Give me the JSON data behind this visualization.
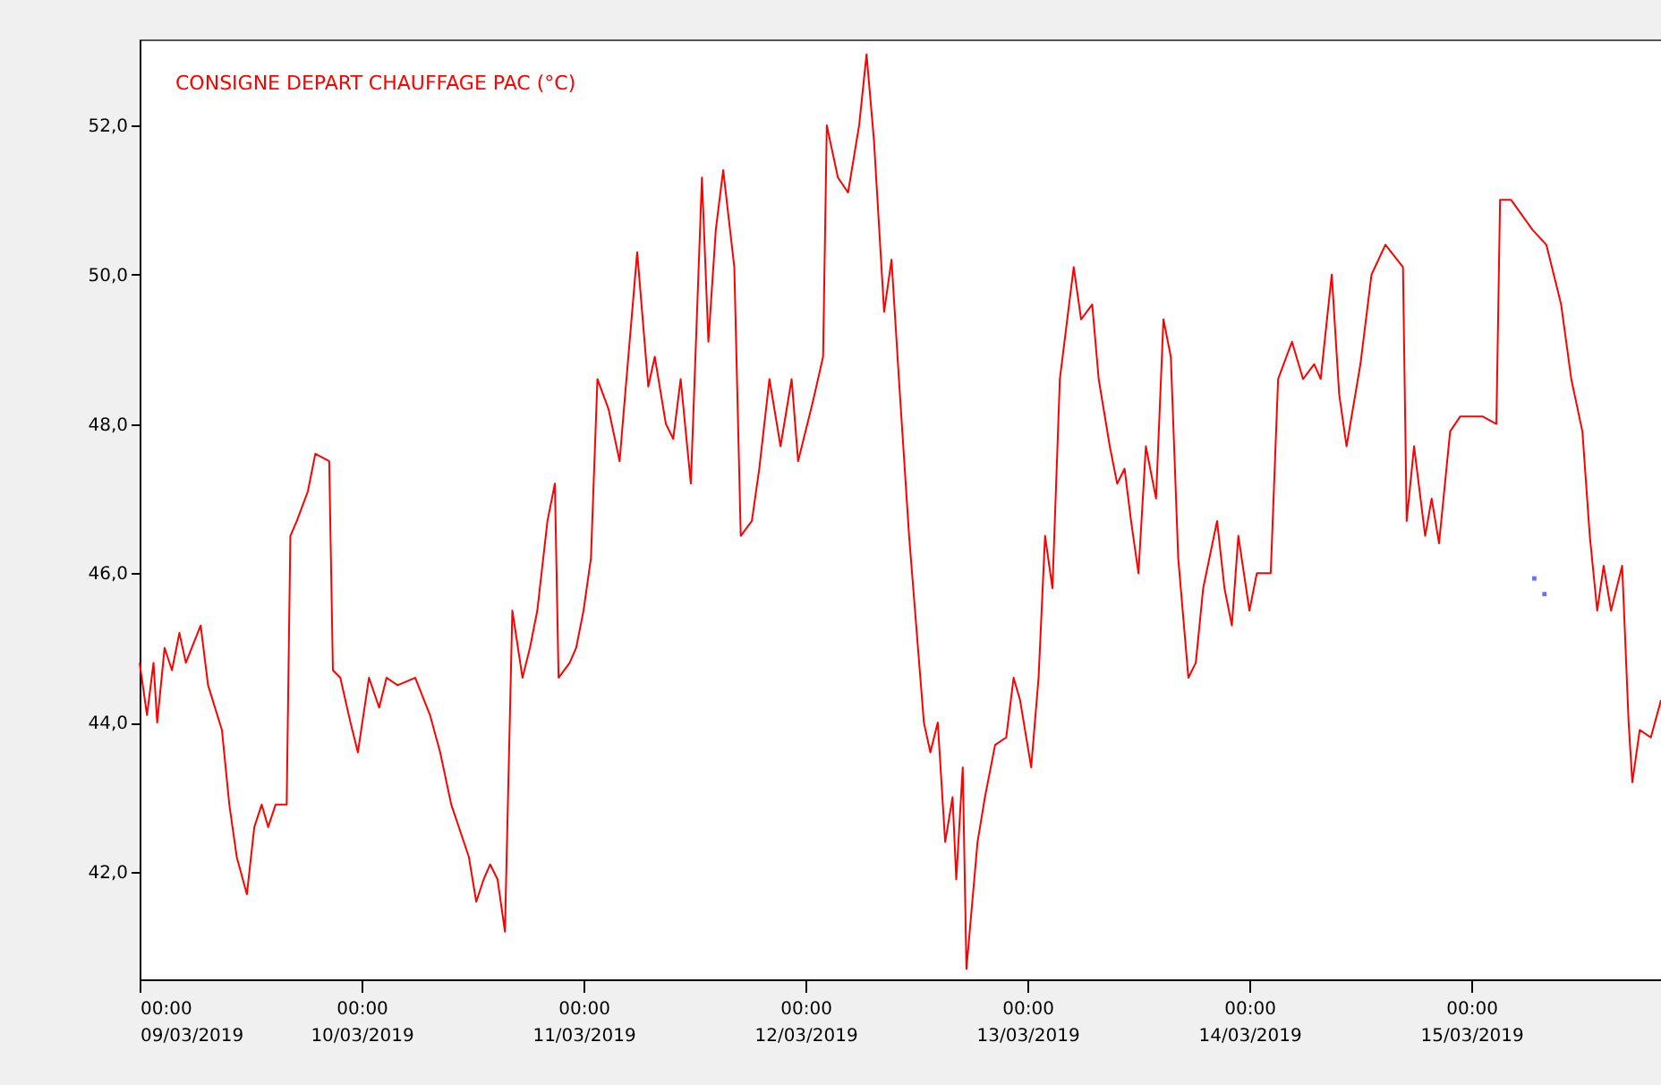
{
  "chart_data": {
    "type": "line",
    "xlim": [
      "2019-03-09",
      "2019-03-15T20:30"
    ],
    "ylim": [
      40.56,
      53.15
    ],
    "xticks": [
      {
        "value": "2019-03-09",
        "label": "00:00\n09/03/2019"
      },
      {
        "value": "2019-03-10",
        "label": "00:00\n10/03/2019"
      },
      {
        "value": "2019-03-11",
        "label": "00:00\n11/03/2019"
      },
      {
        "value": "2019-03-12",
        "label": "00:00\n12/03/2019"
      },
      {
        "value": "2019-03-13",
        "label": "00:00\n13/03/2019"
      },
      {
        "value": "2019-03-14",
        "label": "00:00\n14/03/2019"
      },
      {
        "value": "2019-03-15",
        "label": "00:00\n15/03/2019"
      }
    ],
    "yticks": [
      {
        "value": 42,
        "label": "42,0"
      },
      {
        "value": 44,
        "label": "44,0"
      },
      {
        "value": 46,
        "label": "46,0"
      },
      {
        "value": 48,
        "label": "48,0"
      },
      {
        "value": 50,
        "label": "50,0"
      },
      {
        "value": 52,
        "label": "52,0"
      }
    ],
    "grid": false,
    "legend": "top left",
    "marker": "none",
    "line_style": "solid",
    "series": [
      {
        "name": "CONSIGNE DEPART CHAUFFAGE PAC (°C)",
        "color": "#ff0000",
        "x": [
          "2019-03-09T00:00",
          "2019-03-09T00:48",
          "2019-03-09T01:30",
          "2019-03-09T01:54",
          "2019-03-09T02:42",
          "2019-03-09T03:30",
          "2019-03-09T04:18",
          "2019-03-09T05:00",
          "2019-03-09T06:36",
          "2019-03-09T07:24",
          "2019-03-09T08:54",
          "2019-03-09T09:42",
          "2019-03-09T10:30",
          "2019-03-09T11:36",
          "2019-03-09T12:24",
          "2019-03-09T13:12",
          "2019-03-09T13:54",
          "2019-03-09T14:42",
          "2019-03-09T15:54",
          "2019-03-09T16:18",
          "2019-03-09T17:00",
          "2019-03-09T18:12",
          "2019-03-09T19:00",
          "2019-03-09T20:30",
          "2019-03-09T20:54",
          "2019-03-09T21:42",
          "2019-03-09T22:48",
          "2019-03-09T23:36",
          "2019-03-10T00:48",
          "2019-03-10T01:54",
          "2019-03-10T02:42",
          "2019-03-10T03:54",
          "2019-03-10T05:48",
          "2019-03-10T07:24",
          "2019-03-10T08:30",
          "2019-03-10T09:42",
          "2019-03-10T11:36",
          "2019-03-10T12:24",
          "2019-03-10T13:12",
          "2019-03-10T13:54",
          "2019-03-10T14:42",
          "2019-03-10T15:30",
          "2019-03-10T16:18",
          "2019-03-10T17:24",
          "2019-03-10T18:12",
          "2019-03-10T19:00",
          "2019-03-10T20:06",
          "2019-03-10T20:54",
          "2019-03-10T21:18",
          "2019-03-10T22:30",
          "2019-03-10T23:12",
          "2019-03-11T00:00",
          "2019-03-11T00:48",
          "2019-03-11T01:30",
          "2019-03-11T02:42",
          "2019-03-11T03:54",
          "2019-03-11T04:18",
          "2019-03-11T05:48",
          "2019-03-11T07:00",
          "2019-03-11T07:42",
          "2019-03-11T08:54",
          "2019-03-11T09:42",
          "2019-03-11T10:30",
          "2019-03-11T11:36",
          "2019-03-11T12:48",
          "2019-03-11T13:30",
          "2019-03-11T14:18",
          "2019-03-11T15:06",
          "2019-03-11T16:18",
          "2019-03-11T17:00",
          "2019-03-11T18:12",
          "2019-03-11T19:00",
          "2019-03-11T20:06",
          "2019-03-11T21:18",
          "2019-03-11T22:30",
          "2019-03-11T23:12",
          "2019-03-12T00:48",
          "2019-03-12T01:54",
          "2019-03-12T02:18",
          "2019-03-12T03:30",
          "2019-03-12T04:36",
          "2019-03-12T05:48",
          "2019-03-12T06:36",
          "2019-03-12T07:24",
          "2019-03-12T08:30",
          "2019-03-12T09:18",
          "2019-03-12T10:06",
          "2019-03-12T11:12",
          "2019-03-12T12:48",
          "2019-03-12T13:30",
          "2019-03-12T14:18",
          "2019-03-12T15:06",
          "2019-03-12T15:54",
          "2019-03-12T16:18",
          "2019-03-12T17:00",
          "2019-03-12T17:24",
          "2019-03-12T18:36",
          "2019-03-12T19:24",
          "2019-03-12T20:30",
          "2019-03-12T21:42",
          "2019-03-12T22:30",
          "2019-03-12T23:12",
          "2019-03-13T00:24",
          "2019-03-13T01:12",
          "2019-03-13T01:54",
          "2019-03-13T02:42",
          "2019-03-13T03:30",
          "2019-03-13T05:00",
          "2019-03-13T05:48",
          "2019-03-13T07:00",
          "2019-03-13T07:42",
          "2019-03-13T08:54",
          "2019-03-13T09:42",
          "2019-03-13T10:30",
          "2019-03-13T11:12",
          "2019-03-13T12:00",
          "2019-03-13T12:48",
          "2019-03-13T13:54",
          "2019-03-13T14:42",
          "2019-03-13T15:30",
          "2019-03-13T16:18",
          "2019-03-13T17:24",
          "2019-03-13T18:12",
          "2019-03-13T19:00",
          "2019-03-13T20:30",
          "2019-03-13T21:18",
          "2019-03-13T22:06",
          "2019-03-13T22:48",
          "2019-03-14T00:00",
          "2019-03-14T00:48",
          "2019-03-14T02:18",
          "2019-03-14T03:06",
          "2019-03-14T04:36",
          "2019-03-14T05:48",
          "2019-03-14T07:00",
          "2019-03-14T07:42",
          "2019-03-14T08:54",
          "2019-03-14T09:42",
          "2019-03-14T10:30",
          "2019-03-14T12:00",
          "2019-03-14T13:12",
          "2019-03-14T14:42",
          "2019-03-14T16:36",
          "2019-03-14T17:00",
          "2019-03-14T17:48",
          "2019-03-14T19:00",
          "2019-03-14T19:42",
          "2019-03-14T20:30",
          "2019-03-14T21:42",
          "2019-03-14T22:48",
          "2019-03-15T01:12",
          "2019-03-15T02:42",
          "2019-03-15T03:06",
          "2019-03-15T04:18",
          "2019-03-15T06:36",
          "2019-03-15T08:06",
          "2019-03-15T09:42",
          "2019-03-15T10:48",
          "2019-03-15T12:00",
          "2019-03-15T12:48",
          "2019-03-15T13:36",
          "2019-03-15T14:18",
          "2019-03-15T15:06",
          "2019-03-15T16:18",
          "2019-03-15T17:00",
          "2019-03-15T17:24",
          "2019-03-15T18:12",
          "2019-03-15T19:24",
          "2019-03-15T20:30"
        ],
        "values": [
          44.8,
          44.1,
          44.8,
          44.0,
          45.0,
          44.7,
          45.2,
          44.8,
          45.3,
          44.5,
          43.9,
          42.9,
          42.2,
          41.7,
          42.6,
          42.9,
          42.6,
          42.9,
          42.9,
          46.5,
          46.7,
          47.1,
          47.6,
          47.5,
          44.7,
          44.6,
          44.0,
          43.6,
          44.6,
          44.2,
          44.6,
          44.5,
          44.6,
          44.1,
          43.6,
          42.9,
          42.2,
          41.6,
          41.9,
          42.1,
          41.9,
          41.2,
          45.5,
          44.6,
          45.0,
          45.5,
          46.7,
          47.2,
          44.6,
          44.8,
          45.0,
          45.5,
          46.2,
          48.6,
          48.2,
          47.5,
          48.1,
          50.3,
          48.5,
          48.9,
          48.0,
          47.8,
          48.6,
          47.2,
          51.3,
          49.1,
          50.6,
          51.4,
          50.1,
          46.5,
          46.7,
          47.4,
          48.6,
          47.7,
          48.6,
          47.5,
          48.3,
          48.9,
          52.0,
          51.3,
          51.1,
          52.0,
          52.95,
          51.8,
          49.5,
          50.2,
          48.6,
          46.5,
          44.0,
          43.6,
          44.0,
          42.4,
          43.0,
          41.9,
          43.4,
          40.7,
          42.4,
          43.0,
          43.7,
          43.8,
          44.6,
          44.3,
          43.4,
          44.6,
          46.5,
          45.8,
          48.6,
          50.1,
          49.4,
          49.6,
          48.6,
          47.7,
          47.2,
          47.4,
          46.7,
          46.0,
          47.7,
          47.0,
          49.4,
          48.9,
          46.2,
          44.6,
          44.8,
          45.8,
          46.7,
          45.8,
          45.3,
          46.5,
          45.5,
          46.0,
          46.0,
          48.6,
          49.1,
          48.6,
          48.8,
          48.6,
          50.0,
          48.4,
          47.7,
          48.8,
          50.0,
          50.4,
          50.1,
          46.7,
          47.7,
          46.5,
          47.0,
          46.4,
          47.9,
          48.1,
          48.1,
          48.0,
          51.0,
          51.0,
          50.6,
          50.4,
          49.6,
          48.6,
          47.9,
          46.5,
          45.5,
          46.1,
          45.5,
          46.1,
          44.0,
          43.2,
          43.9,
          43.8,
          44.3
        ]
      },
      {
        "color": "#3333ff",
        "type": "scatter",
        "marker": "square",
        "x": [
          "2019-03-15T06:48",
          "2019-03-15T07:54"
        ],
        "values": [
          45.93,
          45.72
        ]
      }
    ]
  }
}
